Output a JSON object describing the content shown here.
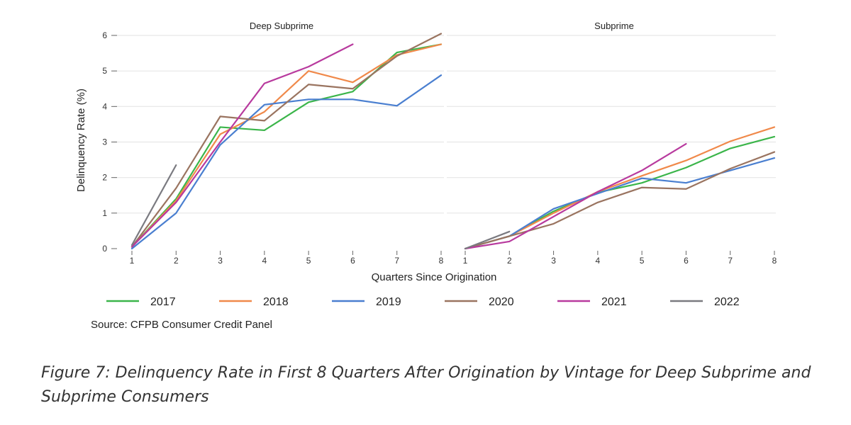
{
  "chart_data": {
    "type": "line",
    "xlabel": "Quarters Since Origination",
    "ylabel": "Delinquency Rate (%)",
    "x": [
      1,
      2,
      3,
      4,
      5,
      6,
      7,
      8
    ],
    "xticks": [
      "1",
      "2",
      "3",
      "4",
      "5",
      "6",
      "7",
      "8"
    ],
    "ylim": [
      0,
      6
    ],
    "yticks": [
      "0",
      "1",
      "2",
      "3",
      "4",
      "5",
      "6"
    ],
    "grid": true,
    "legend_position": "bottom",
    "source": "Source: CFPB Consumer Credit Panel",
    "series_styles": [
      {
        "name": "2017",
        "color": "#3bb54a"
      },
      {
        "name": "2018",
        "color": "#f0894a"
      },
      {
        "name": "2019",
        "color": "#4a7fd0"
      },
      {
        "name": "2020",
        "color": "#9a7460"
      },
      {
        "name": "2021",
        "color": "#b83a9e"
      },
      {
        "name": "2022",
        "color": "#7a7a80"
      }
    ],
    "panels": [
      {
        "title": "Deep Subprime",
        "series": [
          {
            "name": "2017",
            "values": [
              0.05,
              1.4,
              3.42,
              3.33,
              4.12,
              4.42,
              5.52,
              5.75
            ]
          },
          {
            "name": "2018",
            "values": [
              0.05,
              1.35,
              3.22,
              3.85,
              5.0,
              4.68,
              5.45,
              5.75
            ]
          },
          {
            "name": "2019",
            "values": [
              0.0,
              1.0,
              2.92,
              4.05,
              4.2,
              4.2,
              4.02,
              4.88
            ]
          },
          {
            "name": "2020",
            "values": [
              0.05,
              1.7,
              3.72,
              3.6,
              4.62,
              4.5,
              5.42,
              6.05
            ]
          },
          {
            "name": "2021",
            "values": [
              0.05,
              1.3,
              3.0,
              4.65,
              5.12,
              5.75
            ]
          },
          {
            "name": "2022",
            "values": [
              0.1,
              2.35
            ]
          }
        ]
      },
      {
        "title": "Subprime",
        "series": [
          {
            "name": "2017",
            "values": [
              0.0,
              0.35,
              1.05,
              1.58,
              1.85,
              2.28,
              2.82,
              3.15
            ]
          },
          {
            "name": "2018",
            "values": [
              0.0,
              0.35,
              1.0,
              1.6,
              2.05,
              2.48,
              3.02,
              3.42
            ]
          },
          {
            "name": "2019",
            "values": [
              0.0,
              0.35,
              1.12,
              1.55,
              1.98,
              1.85,
              2.2,
              2.55
            ]
          },
          {
            "name": "2020",
            "values": [
              0.0,
              0.35,
              0.7,
              1.3,
              1.72,
              1.68,
              2.25,
              2.72
            ]
          },
          {
            "name": "2021",
            "values": [
              0.0,
              0.2,
              0.9,
              1.6,
              2.2,
              2.95
            ]
          },
          {
            "name": "2022",
            "values": [
              0.0,
              0.48
            ]
          }
        ]
      }
    ]
  },
  "caption": "Figure 7: Delinquency Rate in First 8 Quarters After Origination by Vintage for Deep Subprime and Subprime Consumers"
}
